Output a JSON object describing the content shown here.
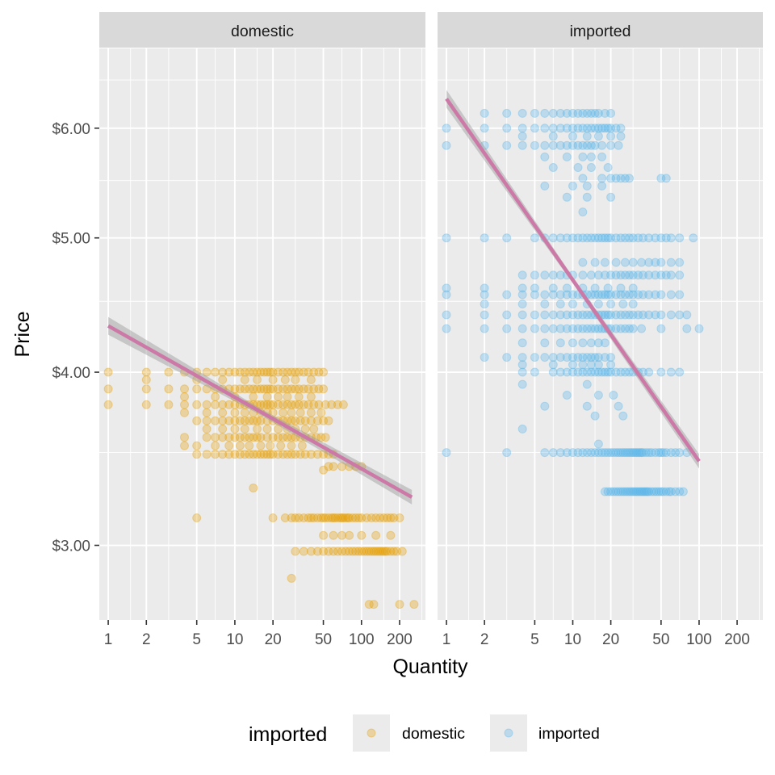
{
  "colors": {
    "domestic": "#E69F00",
    "imported": "#56B4E9",
    "fit_line": "#CC79A7",
    "ribbon": "#999999"
  },
  "chart_data": {
    "type": "scatter",
    "x_scale": "log10",
    "y_scale": "log10",
    "xlabel": "Quantity",
    "ylabel": "Price",
    "x_ticks": [
      1,
      2,
      5,
      10,
      20,
      50,
      100,
      200
    ],
    "x_tick_labels": [
      "1",
      "2",
      "5",
      "10",
      "20",
      "50",
      "100",
      "200"
    ],
    "x_range": [
      0.85,
      320
    ],
    "y_ticks": [
      3,
      4,
      5,
      6
    ],
    "y_tick_labels": [
      "$3.00",
      "$4.00",
      "$5.00",
      "$6.00"
    ],
    "y_range": [
      2.65,
      6.85
    ],
    "legend": {
      "title": "imported",
      "position": "bottom",
      "entries": [
        "domestic",
        "imported"
      ]
    },
    "panels": [
      {
        "label": "domestic",
        "series": "domestic",
        "fit": {
          "x0": 1,
          "y0": 4.32,
          "x1": 250,
          "y1": 3.25
        },
        "groups": [
          {
            "y": 4.0,
            "x": [
              1,
              2,
              3,
              4,
              5,
              6,
              7,
              8,
              9,
              10,
              11,
              12,
              13,
              14,
              15,
              16,
              17,
              18,
              19,
              20,
              22,
              24,
              26,
              28,
              30,
              32,
              35,
              38,
              42,
              46,
              50
            ]
          },
          {
            "y": 3.95,
            "x": [
              2,
              5,
              8,
              12,
              15,
              20,
              25,
              30,
              40
            ]
          },
          {
            "y": 3.89,
            "x": [
              1,
              2,
              3,
              4,
              5,
              6,
              7,
              8,
              9,
              10,
              11,
              12,
              13,
              14,
              15,
              16,
              17,
              18,
              19,
              20,
              22,
              24,
              26,
              28,
              30,
              32,
              35,
              38,
              42,
              46,
              50
            ]
          },
          {
            "y": 3.84,
            "x": [
              4,
              7,
              10,
              14,
              18,
              22,
              26,
              32,
              40
            ]
          },
          {
            "y": 3.79,
            "x": [
              1,
              2,
              3,
              4,
              5,
              6,
              7,
              8,
              9,
              10,
              11,
              12,
              13,
              14,
              15,
              16,
              17,
              18,
              19,
              20,
              22,
              24,
              26,
              28,
              30,
              32,
              35,
              38,
              42,
              46,
              52,
              58,
              65,
              72
            ]
          },
          {
            "y": 3.74,
            "x": [
              4,
              6,
              8,
              10,
              12,
              14,
              16,
              18,
              20,
              24,
              28,
              33,
              40,
              48
            ]
          },
          {
            "y": 3.69,
            "x": [
              5,
              6,
              7,
              8,
              9,
              10,
              11,
              12,
              13,
              14,
              15,
              16,
              18,
              20,
              22,
              24,
              26,
              28,
              30,
              33,
              36,
              40,
              45,
              50,
              55
            ]
          },
          {
            "y": 3.64,
            "x": [
              6,
              8,
              10,
              12,
              15,
              18,
              22,
              26,
              30,
              36,
              42
            ]
          },
          {
            "y": 3.59,
            "x": [
              4,
              6,
              7,
              8,
              9,
              10,
              11,
              12,
              13,
              14,
              15,
              16,
              18,
              20,
              22,
              24,
              26,
              28,
              30,
              33,
              36,
              40,
              44,
              48,
              52
            ]
          },
          {
            "y": 3.54,
            "x": [
              4,
              5,
              7,
              9,
              11,
              13,
              16,
              19,
              23,
              28,
              34
            ]
          },
          {
            "y": 3.49,
            "x": [
              5,
              6,
              7,
              8,
              9,
              10,
              11,
              12,
              13,
              14,
              15,
              16,
              17,
              18,
              19,
              20,
              22,
              24,
              26,
              28,
              30,
              33,
              36,
              40,
              45,
              50,
              55,
              60
            ]
          },
          {
            "y": 3.4,
            "x": [
              50
            ]
          },
          {
            "y": 3.42,
            "x": [
              55,
              60,
              70,
              80,
              90,
              100
            ]
          },
          {
            "y": 3.3,
            "x": [
              14
            ]
          },
          {
            "y": 3.14,
            "x": [
              5,
              20,
              25,
              28,
              30,
              32,
              35,
              38,
              40,
              42,
              45,
              48,
              50,
              52,
              55,
              58,
              60,
              62,
              65,
              68,
              70,
              72,
              75,
              78,
              80,
              85,
              90,
              95,
              100,
              110,
              120,
              130,
              140,
              150,
              160,
              170,
              180,
              200
            ]
          },
          {
            "y": 3.05,
            "x": [
              50,
              60,
              70,
              80,
              100,
              130,
              170
            ]
          },
          {
            "y": 2.97,
            "x": [
              30,
              35,
              40,
              45,
              50,
              55,
              60,
              65,
              70,
              75,
              80,
              85,
              90,
              95,
              100,
              105,
              110,
              115,
              120,
              125,
              130,
              135,
              140,
              145,
              150,
              155,
              160,
              170,
              180,
              190,
              210
            ]
          },
          {
            "y": 2.84,
            "x": [
              28
            ]
          },
          {
            "y": 2.72,
            "x": [
              115,
              125,
              200,
              260
            ]
          }
        ]
      },
      {
        "label": "imported",
        "series": "imported",
        "fit": {
          "x0": 1,
          "y0": 6.3,
          "x1": 100,
          "y1": 3.45
        },
        "groups": [
          {
            "y": 6.15,
            "x": [
              2,
              3,
              4,
              5,
              6,
              7,
              8,
              9,
              10,
              11,
              12,
              13,
              14,
              15,
              16,
              18,
              20
            ]
          },
          {
            "y": 6.0,
            "x": [
              1,
              2,
              3,
              4,
              5,
              6,
              7,
              8,
              9,
              10,
              11,
              12,
              13,
              14,
              15,
              16,
              17,
              18,
              19,
              20,
              22,
              24
            ]
          },
          {
            "y": 5.92,
            "x": [
              4,
              7,
              10,
              13,
              16,
              20,
              24
            ]
          },
          {
            "y": 5.83,
            "x": [
              1,
              2,
              3,
              4,
              5,
              6,
              7,
              8,
              9,
              10,
              11,
              12,
              13,
              14,
              15,
              17,
              20,
              23
            ]
          },
          {
            "y": 5.72,
            "x": [
              6,
              9,
              12,
              14,
              17
            ]
          },
          {
            "y": 5.62,
            "x": [
              7,
              11,
              14,
              19
            ]
          },
          {
            "y": 5.52,
            "x": [
              12,
              17,
              20,
              22,
              24,
              26,
              28,
              50,
              55
            ]
          },
          {
            "y": 5.45,
            "x": [
              6,
              10,
              13,
              17
            ]
          },
          {
            "y": 5.35,
            "x": [
              9,
              13,
              20
            ]
          },
          {
            "y": 5.22,
            "x": [
              12
            ]
          },
          {
            "y": 5.0,
            "x": [
              1,
              2,
              3,
              5,
              6,
              7,
              8,
              9,
              10,
              11,
              12,
              13,
              14,
              15,
              16,
              17,
              18,
              19,
              20,
              22,
              24,
              26,
              28,
              30,
              33,
              36,
              40,
              45,
              50,
              55,
              60,
              70,
              90
            ]
          },
          {
            "y": 4.8,
            "x": [
              12,
              15,
              18,
              22,
              26,
              30,
              35,
              40,
              45,
              50,
              60,
              70
            ]
          },
          {
            "y": 4.7,
            "x": [
              4,
              5,
              6,
              7,
              8,
              9,
              10,
              12,
              14,
              16,
              18,
              20,
              22,
              24,
              26,
              28,
              30,
              33,
              36,
              40,
              45,
              50,
              55,
              60,
              70
            ]
          },
          {
            "y": 4.6,
            "x": [
              1,
              2,
              4,
              5,
              7,
              9,
              12,
              15,
              19,
              24,
              30
            ]
          },
          {
            "y": 4.55,
            "x": [
              1,
              2,
              3,
              4,
              5,
              6,
              7,
              8,
              9,
              10,
              11,
              12,
              13,
              14,
              15,
              16,
              17,
              18,
              19,
              20,
              22,
              24,
              26,
              28,
              30,
              33,
              36,
              40,
              45,
              50,
              60,
              70
            ]
          },
          {
            "y": 4.48,
            "x": [
              2,
              4,
              6,
              8,
              10,
              13,
              16,
              20,
              25,
              30
            ]
          },
          {
            "y": 4.4,
            "x": [
              1,
              2,
              3,
              4,
              5,
              6,
              7,
              8,
              9,
              10,
              11,
              12,
              13,
              14,
              15,
              16,
              17,
              18,
              19,
              20,
              22,
              24,
              26,
              28,
              30,
              33,
              36,
              40,
              45,
              50,
              60,
              70,
              80
            ]
          },
          {
            "y": 4.3,
            "x": [
              1,
              2,
              3,
              4,
              5,
              6,
              7,
              8,
              9,
              10,
              11,
              12,
              13,
              14,
              15,
              16,
              17,
              18,
              19,
              20,
              22,
              24,
              26,
              28,
              30,
              35,
              50,
              80,
              100
            ]
          },
          {
            "y": 4.2,
            "x": [
              4,
              6,
              8,
              10,
              12,
              14,
              16,
              18
            ]
          },
          {
            "y": 4.1,
            "x": [
              2,
              3,
              4,
              5,
              6,
              7,
              8,
              9,
              10,
              11,
              12,
              13,
              14,
              15,
              16,
              18,
              20
            ]
          },
          {
            "y": 4.05,
            "x": [
              4,
              7,
              10,
              12,
              14,
              16,
              20
            ]
          },
          {
            "y": 4.0,
            "x": [
              4,
              5,
              7,
              8,
              9,
              10,
              11,
              12,
              13,
              14,
              15,
              16,
              17,
              18,
              19,
              20,
              22,
              24,
              26,
              28,
              30,
              33,
              36,
              40,
              50,
              60,
              70
            ]
          },
          {
            "y": 3.92,
            "x": [
              4,
              13
            ]
          },
          {
            "y": 3.85,
            "x": [
              9,
              16,
              21
            ]
          },
          {
            "y": 3.78,
            "x": [
              6,
              13,
              23
            ]
          },
          {
            "y": 3.72,
            "x": [
              15,
              25
            ]
          },
          {
            "y": 3.64,
            "x": [
              4
            ]
          },
          {
            "y": 3.55,
            "x": [
              16
            ]
          },
          {
            "y": 3.5,
            "x": [
              1,
              3,
              6,
              7,
              8,
              9,
              10,
              11,
              12,
              13,
              14,
              15,
              16,
              17,
              18,
              19,
              20,
              21,
              22,
              23,
              24,
              25,
              26,
              27,
              28,
              29,
              30,
              31,
              32,
              33,
              34,
              35,
              36,
              38,
              40,
              42,
              45,
              48,
              50,
              52,
              55,
              60,
              65,
              70,
              80
            ]
          },
          {
            "y": 3.28,
            "x": [
              18,
              19,
              20,
              21,
              22,
              23,
              24,
              25,
              26,
              27,
              28,
              29,
              30,
              31,
              32,
              33,
              34,
              35,
              36,
              37,
              38,
              39,
              40,
              42,
              44,
              46,
              48,
              50,
              52,
              55,
              58,
              60,
              65,
              70,
              75
            ]
          }
        ]
      }
    ]
  }
}
